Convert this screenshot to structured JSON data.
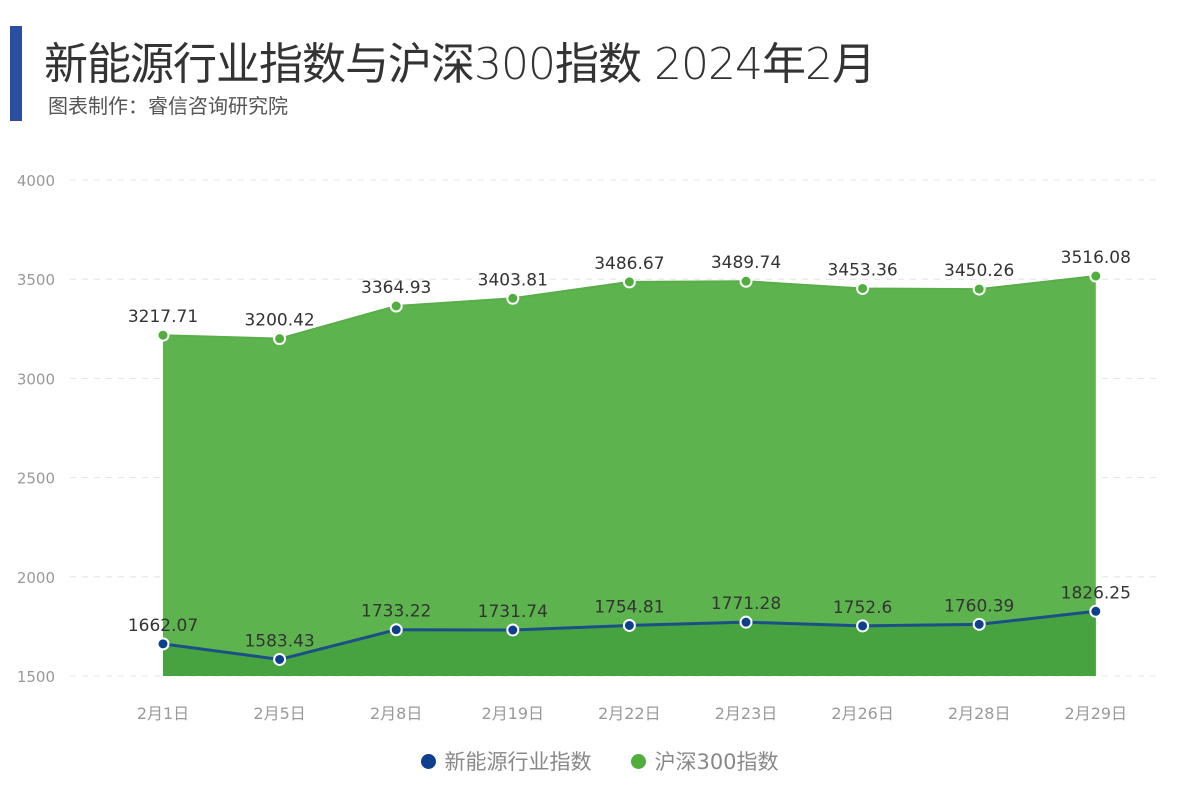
{
  "header": {
    "title": "新能源行业指数与沪深300指数 2024年2月",
    "subtitle": "图表制作：睿信咨询研究院"
  },
  "chart_data": {
    "type": "area",
    "categories": [
      "2月1日",
      "2月5日",
      "2月8日",
      "2月19日",
      "2月22日",
      "2月23日",
      "2月26日",
      "2月28日",
      "2月29日"
    ],
    "ylim": [
      1500,
      4000
    ],
    "yticks": [
      1500,
      2000,
      2500,
      3000,
      3500,
      4000
    ],
    "grid": true,
    "legend_position": "bottom",
    "series": [
      {
        "name": "新能源行业指数",
        "color": "#0d3f8c",
        "line_color": "#1b4f86",
        "fill": "#46a33f",
        "values": [
          1662.07,
          1583.43,
          1733.22,
          1731.74,
          1754.81,
          1771.28,
          1752.6,
          1760.39,
          1826.25
        ],
        "labels": [
          "1662.07",
          "1583.43",
          "1733.22",
          "1731.74",
          "1754.81",
          "1771.28",
          "1752.6",
          "1760.39",
          "1826.25"
        ]
      },
      {
        "name": "沪深300指数",
        "color": "#52ad3f",
        "line_color": "#5aae4a",
        "fill": "#5db44e",
        "values": [
          3217.71,
          3200.42,
          3364.93,
          3403.81,
          3486.67,
          3489.74,
          3453.36,
          3450.26,
          3516.08
        ],
        "labels": [
          "3217.71",
          "3200.42",
          "3364.93",
          "3403.81",
          "3486.67",
          "3489.74",
          "3453.36",
          "3450.26",
          "3516.08"
        ]
      }
    ]
  }
}
